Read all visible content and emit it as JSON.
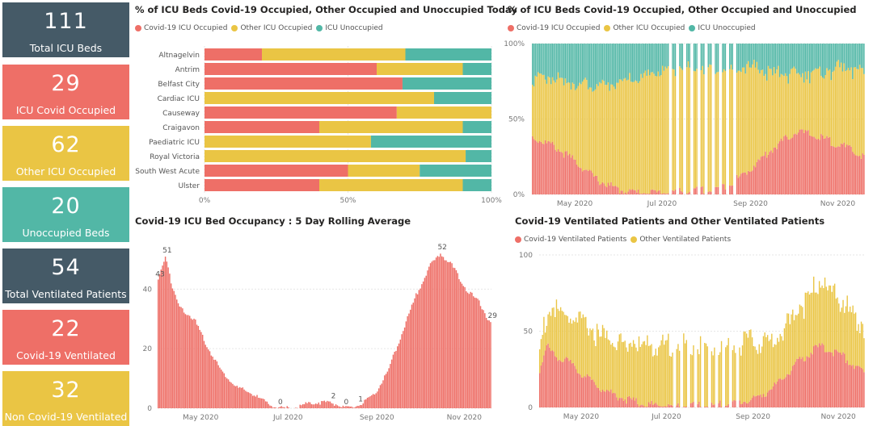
{
  "colors": {
    "covid": "#ee6f67",
    "other": "#eac544",
    "unoccupied": "#52b7a6",
    "dark": "#3f5968"
  },
  "kpis": [
    {
      "value": "111",
      "label": "Total ICU Beds",
      "color": "#455a67"
    },
    {
      "value": "29",
      "label": "ICU Covid Occupied",
      "color": "#ee6f67"
    },
    {
      "value": "62",
      "label": "Other ICU Occupied",
      "color": "#eac544"
    },
    {
      "value": "20",
      "label": "Unoccupied Beds",
      "color": "#52b7a6"
    },
    {
      "value": "54",
      "label": "Total Ventilated Patients",
      "color": "#455a67"
    },
    {
      "value": "22",
      "label": "Covid-19 Ventilated",
      "color": "#ee6f67"
    },
    {
      "value": "32",
      "label": "Non Covid-19 Ventilated",
      "color": "#eac544"
    }
  ],
  "chart_data": [
    {
      "type": "bar",
      "orientation": "horizontal",
      "stacked": "100%",
      "title": "% of ICU Beds Covid-19 Occupied, Other Occupied and Unoccupied Today",
      "legend": [
        "Covid-19 ICU Occupied",
        "Other ICU Occupied",
        "ICU Unoccupied"
      ],
      "legend_placement": "top-left",
      "categories": [
        "Altnagelvin",
        "Antrim",
        "Belfast City",
        "Cardiac ICU",
        "Causeway",
        "Craigavon",
        "Paediatric ICU",
        "Royal Victoria",
        "South West Acute",
        "Ulster"
      ],
      "series": [
        {
          "name": "Covid-19 ICU Occupied",
          "values": [
            20,
            60,
            69,
            0,
            67,
            40,
            0,
            0,
            50,
            40
          ]
        },
        {
          "name": "Other ICU Occupied",
          "values": [
            50,
            30,
            0,
            80,
            33,
            50,
            58,
            91,
            25,
            50
          ]
        },
        {
          "name": "ICU Unoccupied",
          "values": [
            30,
            10,
            31,
            20,
            0,
            10,
            42,
            9,
            25,
            10
          ]
        }
      ],
      "xticks": [
        "0%",
        "50%",
        "100%"
      ],
      "xlim": [
        0,
        100
      ]
    },
    {
      "type": "bar",
      "stacked": "100%",
      "title": "% of ICU Beds Covid-19 Occupied, Other Occupied and Unoccupied",
      "legend": [
        "Covid-19 ICU Occupied",
        "Other ICU Occupied",
        "ICU Unoccupied"
      ],
      "legend_placement": "top-left",
      "x_range": [
        "2020-04-01",
        "2020-12-20"
      ],
      "xticks": [
        "May 2020",
        "Jul 2020",
        "Sep 2020",
        "Nov 2020"
      ],
      "yticks": [
        "0%",
        "50%",
        "100%"
      ],
      "ylim": [
        0,
        100
      ],
      "covid_pct_keypoints": [
        [
          0,
          38
        ],
        [
          15,
          32
        ],
        [
          30,
          22
        ],
        [
          45,
          10
        ],
        [
          60,
          3
        ],
        [
          75,
          1
        ],
        [
          90,
          1
        ],
        [
          110,
          2
        ],
        [
          125,
          3
        ],
        [
          140,
          8
        ],
        [
          150,
          15
        ],
        [
          170,
          32
        ],
        [
          185,
          42
        ],
        [
          200,
          38
        ],
        [
          215,
          33
        ],
        [
          232,
          25
        ]
      ],
      "other_pct_keypoints": [
        [
          0,
          40
        ],
        [
          20,
          46
        ],
        [
          40,
          58
        ],
        [
          60,
          70
        ],
        [
          75,
          75
        ],
        [
          90,
          80
        ],
        [
          110,
          82
        ],
        [
          130,
          80
        ],
        [
          150,
          70
        ],
        [
          170,
          48
        ],
        [
          185,
          38
        ],
        [
          200,
          42
        ],
        [
          215,
          52
        ],
        [
          232,
          55
        ]
      ],
      "missing_data_days": [
        96,
        97,
        101,
        102,
        106,
        107,
        111,
        112,
        116,
        117,
        121,
        122,
        126,
        127,
        131,
        132,
        136,
        137,
        141,
        142
      ]
    },
    {
      "type": "bar",
      "title": "Covid-19 ICU Bed Occupancy : 5 Day Rolling Average",
      "x_range": [
        "2020-04-01",
        "2020-12-20"
      ],
      "xticks": [
        "May 2020",
        "Jul 2020",
        "Sep 2020",
        "Nov 2020"
      ],
      "yticks": [
        0,
        20,
        40
      ],
      "ylim": [
        0,
        55
      ],
      "keypoints": [
        [
          0,
          43
        ],
        [
          3,
          48
        ],
        [
          5,
          51
        ],
        [
          7,
          48
        ],
        [
          10,
          40
        ],
        [
          15,
          34
        ],
        [
          25,
          30
        ],
        [
          35,
          20
        ],
        [
          45,
          12
        ],
        [
          55,
          7
        ],
        [
          65,
          5
        ],
        [
          75,
          2
        ],
        [
          80,
          1
        ],
        [
          84,
          0
        ],
        [
          95,
          0
        ],
        [
          100,
          1
        ],
        [
          110,
          2
        ],
        [
          121,
          2
        ],
        [
          126,
          1
        ],
        [
          130,
          0
        ],
        [
          133,
          0
        ],
        [
          140,
          1
        ],
        [
          150,
          4
        ],
        [
          160,
          12
        ],
        [
          170,
          25
        ],
        [
          180,
          38
        ],
        [
          190,
          48
        ],
        [
          197,
          52
        ],
        [
          205,
          48
        ],
        [
          215,
          40
        ],
        [
          225,
          35
        ],
        [
          230,
          30
        ],
        [
          232,
          29
        ]
      ],
      "annotations": [
        {
          "text": "43",
          "x": 0,
          "y": 43
        },
        {
          "text": "51",
          "x": 5,
          "y": 51
        },
        {
          "text": "0",
          "x": 84,
          "y": 0
        },
        {
          "text": "2",
          "x": 121,
          "y": 2
        },
        {
          "text": "0",
          "x": 130,
          "y": 0
        },
        {
          "text": "1",
          "x": 140,
          "y": 1
        },
        {
          "text": "52",
          "x": 197,
          "y": 52
        },
        {
          "text": "29",
          "x": 232,
          "y": 29
        }
      ]
    },
    {
      "type": "bar",
      "stacked": true,
      "title": "Covid-19 Ventilated Patients and Other Ventilated Patients",
      "legend": [
        "Covid-19 Ventilated Patients",
        "Other Ventilated Patients"
      ],
      "legend_placement": "top-left",
      "x_range": [
        "2020-04-01",
        "2020-12-20"
      ],
      "xticks": [
        "May 2020",
        "Jul 2020",
        "Sep 2020",
        "Nov 2020"
      ],
      "yticks": [
        0,
        50,
        100
      ],
      "ylim": [
        0,
        100
      ],
      "covid_keypoints": [
        [
          0,
          25
        ],
        [
          5,
          40
        ],
        [
          10,
          35
        ],
        [
          20,
          30
        ],
        [
          30,
          22
        ],
        [
          45,
          12
        ],
        [
          60,
          6
        ],
        [
          75,
          2
        ],
        [
          95,
          1
        ],
        [
          120,
          1
        ],
        [
          140,
          3
        ],
        [
          155,
          6
        ],
        [
          170,
          15
        ],
        [
          185,
          30
        ],
        [
          200,
          40
        ],
        [
          215,
          35
        ],
        [
          232,
          22
        ]
      ],
      "other_keypoints": [
        [
          0,
          15
        ],
        [
          5,
          20
        ],
        [
          10,
          30
        ],
        [
          20,
          28
        ],
        [
          30,
          33
        ],
        [
          50,
          35
        ],
        [
          70,
          38
        ],
        [
          100,
          40
        ],
        [
          130,
          38
        ],
        [
          150,
          38
        ],
        [
          170,
          30
        ],
        [
          185,
          35
        ],
        [
          200,
          42
        ],
        [
          215,
          35
        ],
        [
          232,
          30
        ]
      ],
      "missing_data_days": [
        96,
        97,
        101,
        102,
        106,
        107,
        111,
        112,
        116,
        117,
        121,
        122,
        126,
        127,
        131,
        132,
        136,
        137,
        141,
        142
      ]
    }
  ]
}
